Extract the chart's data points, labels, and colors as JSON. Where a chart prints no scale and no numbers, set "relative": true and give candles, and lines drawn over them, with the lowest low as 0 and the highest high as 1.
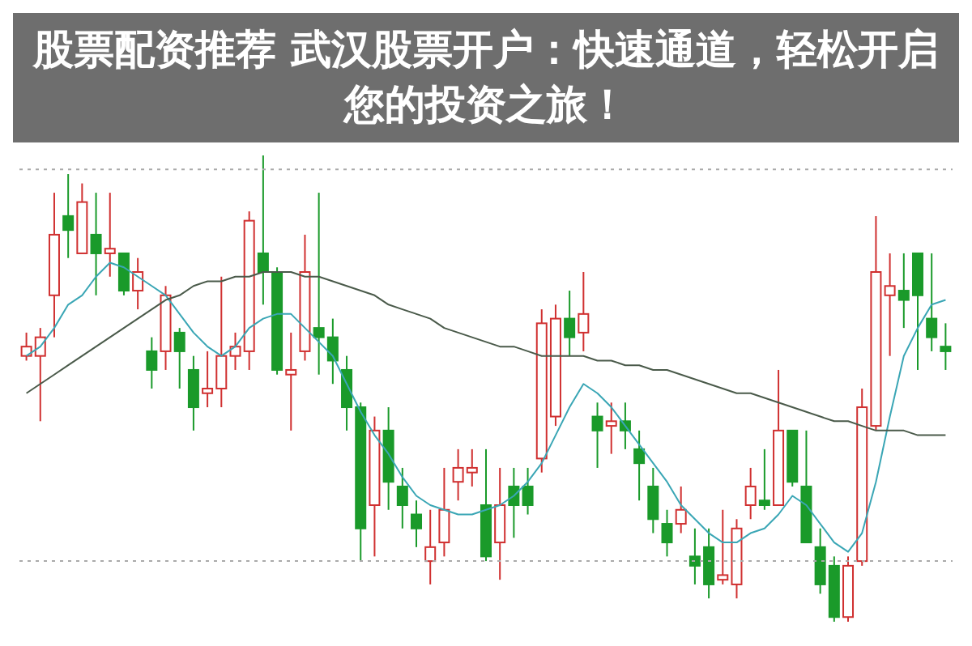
{
  "chart_data": {
    "type": "candlestick",
    "title": "股票配资推荐 武汉股票开户：快速通道，轻松开启您的投资之旅！",
    "relative": true,
    "categories": [
      null,
      null,
      null,
      null,
      null,
      null,
      null,
      null,
      null,
      null,
      null,
      null,
      null,
      null,
      null,
      null,
      null,
      null,
      null,
      null,
      null,
      null,
      null,
      null,
      null,
      null,
      null,
      null,
      null,
      null,
      null,
      null,
      null,
      null,
      null,
      null,
      null,
      null,
      null,
      null,
      null,
      null,
      null,
      null,
      null,
      null,
      null,
      null,
      null,
      null,
      null,
      null,
      null,
      null,
      null,
      null,
      null,
      null,
      null,
      null,
      null,
      null,
      null,
      null,
      null,
      null,
      null
    ],
    "ohlc": [
      [
        0.57,
        0.62,
        0.56,
        0.59
      ],
      [
        0.57,
        0.63,
        0.43,
        0.61
      ],
      [
        0.7,
        0.92,
        0.61,
        0.83
      ],
      [
        0.87,
        0.96,
        0.78,
        0.84
      ],
      [
        0.79,
        0.94,
        0.79,
        0.9
      ],
      [
        0.83,
        0.92,
        0.7,
        0.79
      ],
      [
        0.79,
        0.92,
        0.74,
        0.8
      ],
      [
        0.79,
        0.79,
        0.7,
        0.71
      ],
      [
        0.71,
        0.78,
        0.67,
        0.75
      ],
      [
        0.58,
        0.61,
        0.5,
        0.54
      ],
      [
        0.58,
        0.72,
        0.54,
        0.7
      ],
      [
        0.62,
        0.63,
        0.5,
        0.58
      ],
      [
        0.54,
        0.57,
        0.41,
        0.46
      ],
      [
        0.49,
        0.58,
        0.46,
        0.5
      ],
      [
        0.5,
        0.74,
        0.46,
        0.57
      ],
      [
        0.57,
        0.62,
        0.54,
        0.59
      ],
      [
        0.58,
        0.88,
        0.54,
        0.86
      ],
      [
        0.79,
        1.0,
        0.68,
        0.75
      ],
      [
        0.75,
        0.76,
        0.53,
        0.54
      ],
      [
        0.53,
        0.62,
        0.41,
        0.54
      ],
      [
        0.58,
        0.83,
        0.56,
        0.75
      ],
      [
        0.63,
        0.92,
        0.53,
        0.61
      ],
      [
        0.61,
        0.65,
        0.51,
        0.56
      ],
      [
        0.54,
        0.57,
        0.41,
        0.46
      ],
      [
        0.46,
        0.47,
        0.13,
        0.2
      ],
      [
        0.25,
        0.44,
        0.14,
        0.41
      ],
      [
        0.41,
        0.46,
        0.24,
        0.3
      ],
      [
        0.29,
        0.33,
        0.2,
        0.25
      ],
      [
        0.23,
        0.26,
        0.16,
        0.2
      ],
      [
        0.13,
        0.24,
        0.08,
        0.16
      ],
      [
        0.17,
        0.33,
        0.14,
        0.24
      ],
      [
        0.3,
        0.37,
        0.26,
        0.33
      ],
      [
        0.32,
        0.37,
        0.29,
        0.33
      ],
      [
        0.25,
        0.37,
        0.13,
        0.14
      ],
      [
        0.17,
        0.33,
        0.09,
        0.25
      ],
      [
        0.29,
        0.33,
        0.18,
        0.25
      ],
      [
        0.29,
        0.33,
        0.23,
        0.25
      ],
      [
        0.35,
        0.67,
        0.32,
        0.64
      ],
      [
        0.44,
        0.68,
        0.42,
        0.65
      ],
      [
        0.65,
        0.71,
        0.57,
        0.61
      ],
      [
        0.62,
        0.75,
        0.58,
        0.66
      ],
      [
        0.44,
        0.47,
        0.33,
        0.41
      ],
      [
        0.42,
        0.47,
        0.36,
        0.43
      ],
      [
        0.43,
        0.47,
        0.37,
        0.41
      ],
      [
        0.37,
        0.41,
        0.26,
        0.34
      ],
      [
        0.29,
        0.33,
        0.19,
        0.22
      ],
      [
        0.21,
        0.24,
        0.14,
        0.17
      ],
      [
        0.21,
        0.29,
        0.19,
        0.24
      ],
      [
        0.14,
        0.2,
        0.08,
        0.12
      ],
      [
        0.16,
        0.2,
        0.05,
        0.08
      ],
      [
        0.09,
        0.24,
        0.08,
        0.1
      ],
      [
        0.08,
        0.22,
        0.05,
        0.2
      ],
      [
        0.25,
        0.33,
        0.22,
        0.29
      ],
      [
        0.26,
        0.37,
        0.24,
        0.25
      ],
      [
        0.25,
        0.54,
        0.25,
        0.41
      ],
      [
        0.41,
        0.41,
        0.29,
        0.3
      ],
      [
        0.29,
        0.41,
        0.17,
        0.17
      ],
      [
        0.16,
        0.2,
        0.06,
        0.08
      ],
      [
        0.12,
        0.14,
        0.0,
        0.01
      ],
      [
        0.01,
        0.14,
        0.0,
        0.12
      ],
      [
        0.13,
        0.5,
        0.12,
        0.46
      ],
      [
        0.42,
        0.87,
        0.41,
        0.75
      ],
      [
        0.7,
        0.79,
        0.57,
        0.72
      ],
      [
        0.71,
        0.79,
        0.63,
        0.69
      ],
      [
        0.79,
        0.79,
        0.54,
        0.7
      ],
      [
        0.65,
        0.79,
        0.58,
        0.61
      ],
      [
        0.59,
        0.64,
        0.54,
        0.58
      ]
    ],
    "series": [
      {
        "type": "line",
        "color": "#3aa6b5",
        "values": [
          0.57,
          0.59,
          0.63,
          0.68,
          0.7,
          0.74,
          0.77,
          0.76,
          0.74,
          0.72,
          0.7,
          0.66,
          0.62,
          0.59,
          0.57,
          0.59,
          0.63,
          0.65,
          0.66,
          0.66,
          0.63,
          0.6,
          0.57,
          0.51,
          0.45,
          0.4,
          0.36,
          0.31,
          0.27,
          0.25,
          0.24,
          0.23,
          0.23,
          0.24,
          0.25,
          0.27,
          0.3,
          0.34,
          0.4,
          0.46,
          0.51,
          0.49,
          0.46,
          0.42,
          0.38,
          0.34,
          0.3,
          0.25,
          0.22,
          0.19,
          0.17,
          0.17,
          0.19,
          0.2,
          0.23,
          0.27,
          0.25,
          0.21,
          0.17,
          0.15,
          0.19,
          0.3,
          0.44,
          0.57,
          0.63,
          0.68,
          0.69
        ]
      },
      {
        "type": "line",
        "color": "#4a5a4a",
        "values": [
          0.49,
          0.51,
          0.53,
          0.55,
          0.57,
          0.59,
          0.61,
          0.63,
          0.65,
          0.67,
          0.69,
          0.7,
          0.72,
          0.73,
          0.73,
          0.74,
          0.74,
          0.75,
          0.75,
          0.75,
          0.74,
          0.74,
          0.73,
          0.72,
          0.71,
          0.7,
          0.68,
          0.67,
          0.66,
          0.65,
          0.63,
          0.62,
          0.61,
          0.6,
          0.59,
          0.59,
          0.58,
          0.57,
          0.57,
          0.57,
          0.57,
          0.56,
          0.56,
          0.55,
          0.55,
          0.54,
          0.54,
          0.53,
          0.52,
          0.51,
          0.5,
          0.49,
          0.49,
          0.48,
          0.47,
          0.46,
          0.45,
          0.44,
          0.43,
          0.43,
          0.42,
          0.41,
          0.41,
          0.41,
          0.4,
          0.4,
          0.4
        ]
      }
    ],
    "ref_lines": [
      {
        "axis": "y",
        "value": 0.97,
        "color": "#aaaaaa",
        "line_style": "dotted"
      },
      {
        "axis": "y",
        "value": 0.13,
        "color": "#aaaaaa",
        "line_style": "dotted"
      }
    ]
  }
}
